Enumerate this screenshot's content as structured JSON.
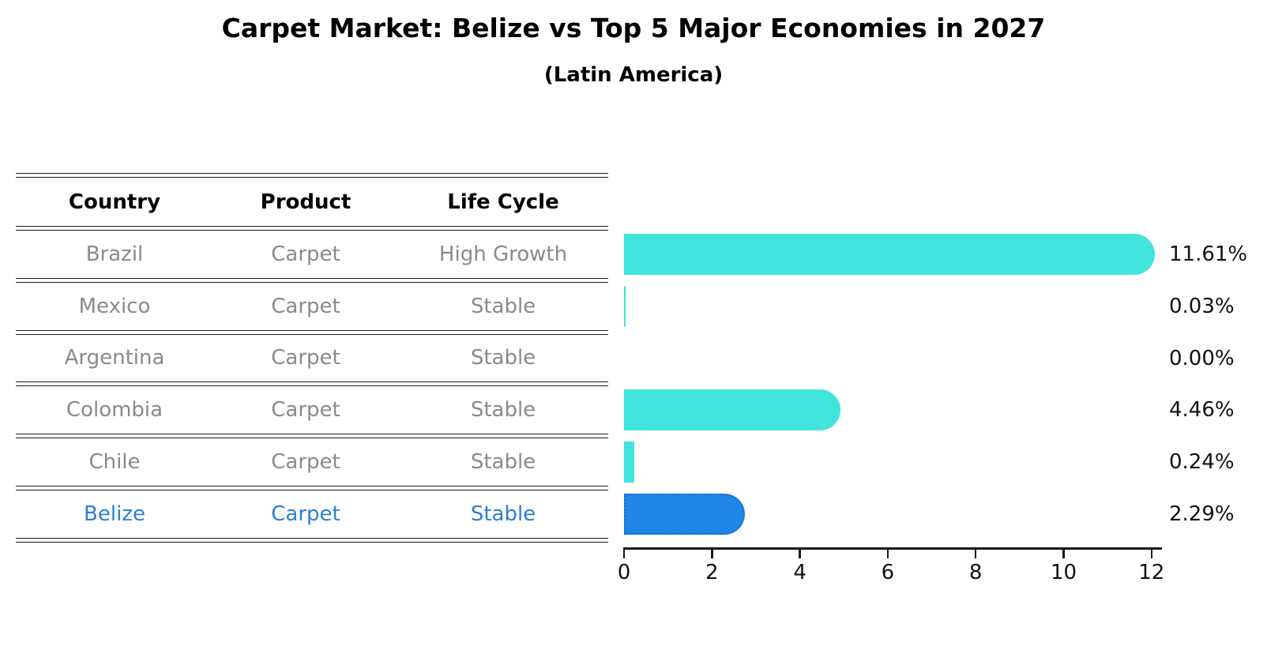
{
  "header": {
    "title": "Carpet Market: Belize vs Top 5 Major Economies in 2027",
    "subtitle": "(Latin America)"
  },
  "table": {
    "headers": [
      "Country",
      "Product",
      "Life Cycle"
    ],
    "rows": [
      {
        "country": "Brazil",
        "product": "Carpet",
        "life_cycle": "High Growth",
        "highlighted": false
      },
      {
        "country": "Mexico",
        "product": "Carpet",
        "life_cycle": "Stable",
        "highlighted": false
      },
      {
        "country": "Argentina",
        "product": "Carpet",
        "life_cycle": "Stable",
        "highlighted": false
      },
      {
        "country": "Colombia",
        "product": "Carpet",
        "life_cycle": "Stable",
        "highlighted": false
      },
      {
        "country": "Chile",
        "product": "Carpet",
        "life_cycle": "Stable",
        "highlighted": false
      },
      {
        "country": "Belize",
        "product": "Carpet",
        "life_cycle": "Stable",
        "highlighted": true
      }
    ]
  },
  "chart_data": {
    "type": "bar",
    "orientation": "horizontal",
    "title": "Carpet Market: Belize vs Top 5 Major Economies in 2027",
    "subtitle": "(Latin America)",
    "categories": [
      "Brazil",
      "Mexico",
      "Argentina",
      "Colombia",
      "Chile",
      "Belize"
    ],
    "values": [
      11.61,
      0.03,
      0.0,
      4.46,
      0.24,
      2.29
    ],
    "value_labels": [
      "11.61%",
      "0.03%",
      "0.00%",
      "4.46%",
      "0.24%",
      "2.29%"
    ],
    "xlabel": "",
    "ylabel": "",
    "xlim": [
      0,
      12
    ],
    "xticks": [
      "0",
      "2",
      "4",
      "6",
      "8",
      "10",
      "12"
    ],
    "grid": false,
    "legend": "none",
    "highlight_category": "Belize",
    "colors": {
      "bar_default": "#40e4dc",
      "bar_highlight": "#1e87e5",
      "highlight_border": "#1a67c9",
      "highlight_text": "#2d7fd1",
      "row_text": "#8a8a8a",
      "axis_text": "#111111",
      "line": "#1a1a1a"
    }
  }
}
